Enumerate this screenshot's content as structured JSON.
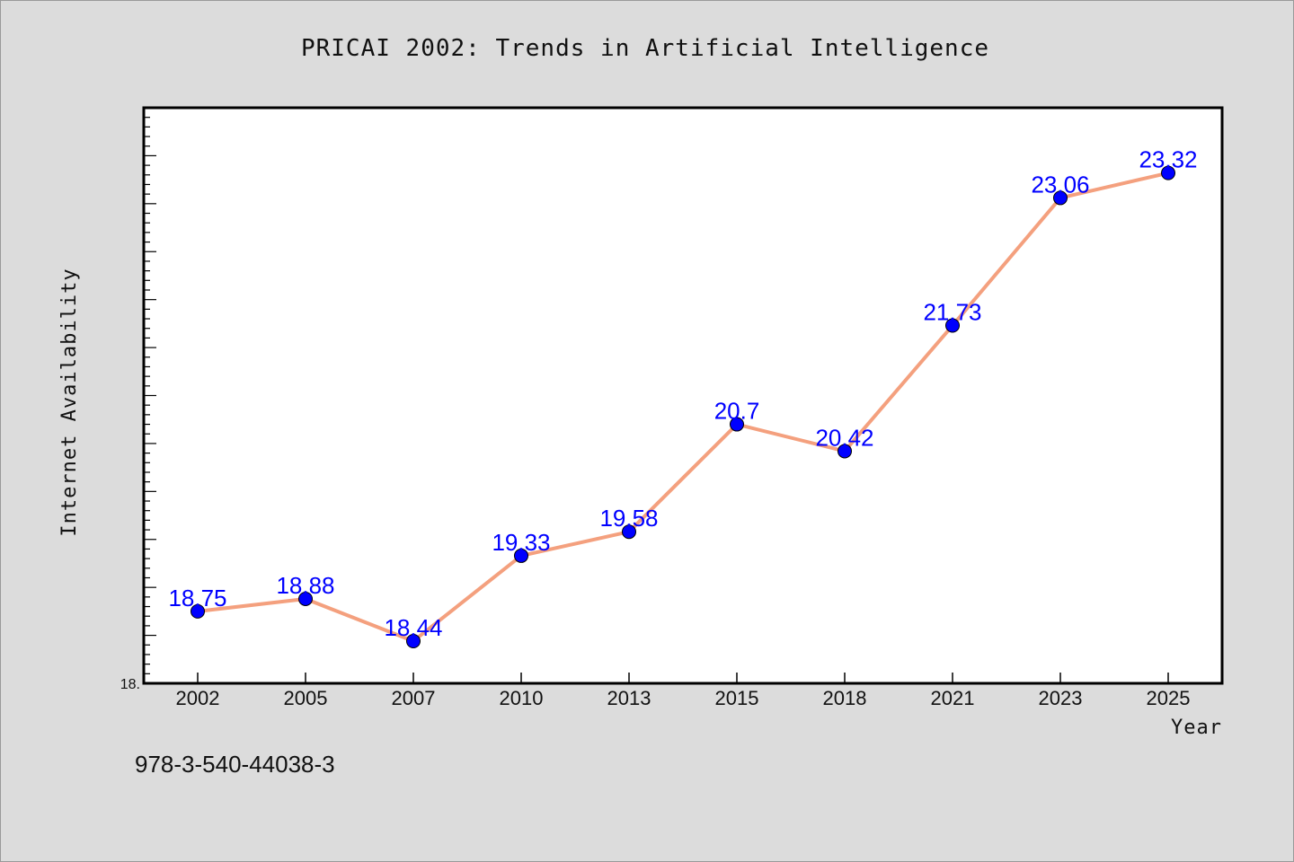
{
  "chart_data": {
    "type": "line",
    "title": "PRICAI 2002: Trends in Artificial Intelligence",
    "xlabel": "Year",
    "ylabel": "Internet Availability",
    "categories": [
      "2002",
      "2005",
      "2007",
      "2010",
      "2013",
      "2015",
      "2018",
      "2021",
      "2023",
      "2025"
    ],
    "values": [
      18.75,
      18.88,
      18.44,
      19.33,
      19.58,
      20.7,
      20.42,
      21.73,
      23.06,
      23.32
    ],
    "data_labels": [
      "18.75",
      "18.88",
      "18.44",
      "19.33",
      "19.58",
      "20.7",
      "20.42",
      "21.73",
      "23.06",
      "23.32"
    ],
    "ylim": [
      18.0,
      24.0
    ],
    "y_tick_labels": [
      "18."
    ],
    "grid": false,
    "line_color": "#f4a07e",
    "marker_color": "#0000ff",
    "label_color": "#0000ff"
  },
  "footer": {
    "isbn": "978-3-540-44038-3"
  }
}
